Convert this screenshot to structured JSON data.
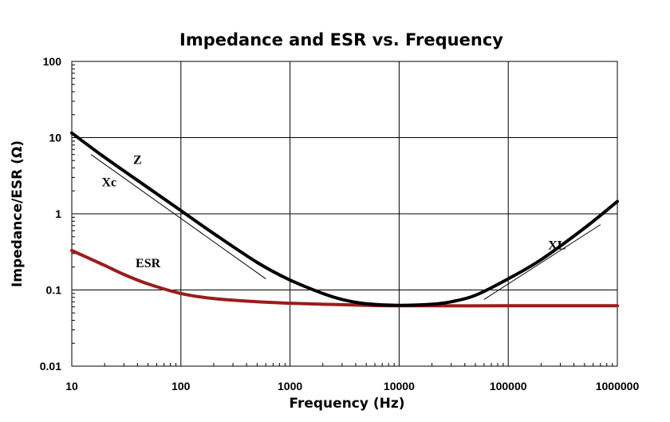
{
  "chart_data": {
    "type": "line",
    "title": "Impedance and ESR vs. Frequency",
    "xlabel": "Frequency (Hz)",
    "ylabel": "Impedance/ESR (Ω)",
    "x_scale": "log",
    "y_scale": "log",
    "xlim": [
      10,
      1000000
    ],
    "ylim": [
      0.01,
      100
    ],
    "x_ticks": [
      "10",
      "100",
      "1000",
      "10000",
      "100000",
      "1000000"
    ],
    "y_ticks": [
      "0.01",
      "0.1",
      "1",
      "10",
      "100"
    ],
    "grid": true,
    "colors": {
      "Z": "#000000",
      "ESR": "#9b1c1c",
      "reference": "#000000"
    },
    "series": [
      {
        "name": "Z",
        "x": [
          10,
          20,
          50,
          100,
          200,
          500,
          1000,
          2000,
          3000,
          5000,
          10000,
          20000,
          30000,
          50000,
          100000,
          200000,
          500000,
          1000000
        ],
        "y": [
          11.5,
          5.5,
          2.2,
          1.1,
          0.55,
          0.23,
          0.135,
          0.09,
          0.075,
          0.066,
          0.063,
          0.065,
          0.07,
          0.085,
          0.14,
          0.25,
          0.65,
          1.45
        ]
      },
      {
        "name": "ESR",
        "x": [
          10,
          20,
          30,
          50,
          100,
          200,
          500,
          1000,
          2000,
          5000,
          10000,
          100000,
          1000000
        ],
        "y": [
          0.33,
          0.21,
          0.16,
          0.12,
          0.09,
          0.077,
          0.07,
          0.067,
          0.065,
          0.063,
          0.062,
          0.062,
          0.062
        ]
      }
    ],
    "reference_lines": [
      {
        "name": "Xc",
        "x": [
          15,
          600
        ],
        "y": [
          6,
          0.14
        ]
      },
      {
        "name": "XL",
        "x": [
          60000,
          700000
        ],
        "y": [
          0.075,
          0.72
        ]
      }
    ],
    "annotations": [
      {
        "text": "Z",
        "x": 40,
        "y": 4.5
      },
      {
        "text": "Xc",
        "x": 22,
        "y": 2.3
      },
      {
        "text": "ESR",
        "x": 50,
        "y": 0.2
      },
      {
        "text": "XL",
        "x": 280000,
        "y": 0.34
      }
    ]
  }
}
